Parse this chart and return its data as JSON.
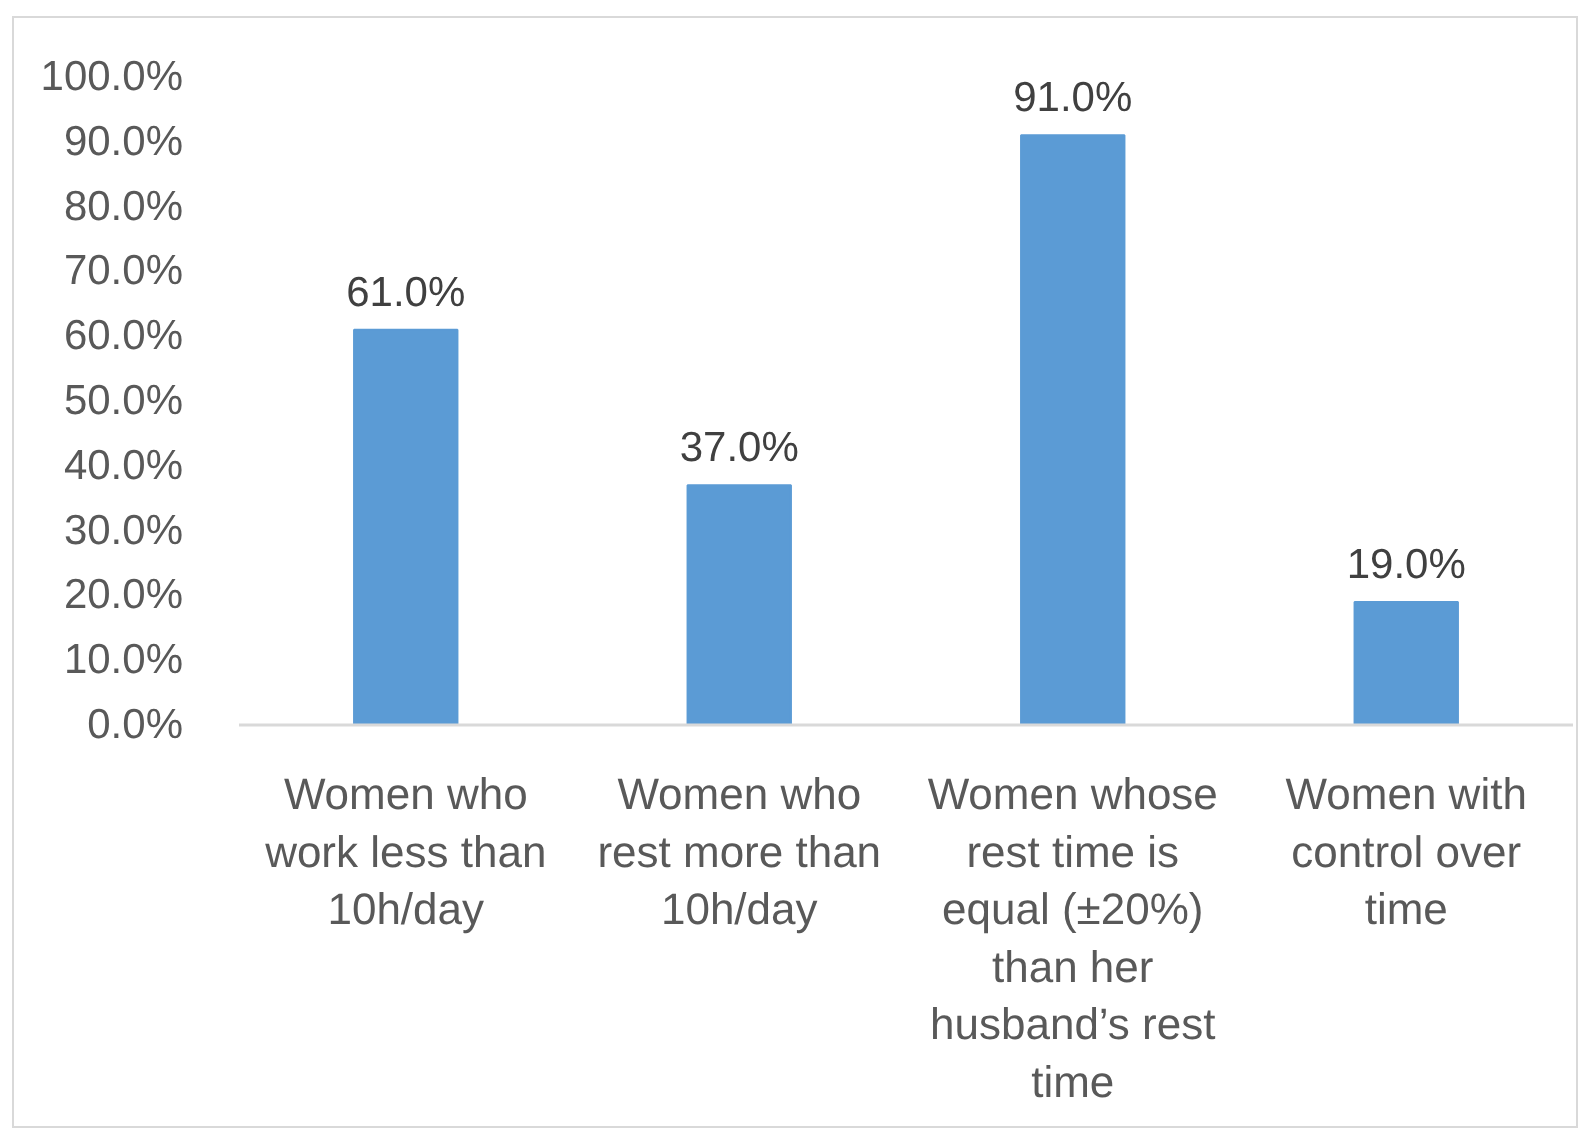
{
  "chart_data": {
    "type": "bar",
    "categories": [
      "Women who work less than 10h/day",
      "Women who rest more than 10h/day",
      "Women whose rest time is equal (±20%) than her husband’s rest time",
      "Women with control over time"
    ],
    "values": [
      61,
      37,
      91,
      19
    ],
    "color": "#5b9bd5",
    "value_labels": [
      "61.0%",
      "37.0%",
      "91.0%",
      "19.0%"
    ],
    "ylim": [
      0,
      100
    ],
    "yticks": [
      {
        "value": 0,
        "label": "0.0%"
      },
      {
        "value": 10,
        "label": "10.0%"
      },
      {
        "value": 20,
        "label": "20.0%"
      },
      {
        "value": 30,
        "label": "30.0%"
      },
      {
        "value": 40,
        "label": "40.0%"
      },
      {
        "value": 50,
        "label": "50.0%"
      },
      {
        "value": 60,
        "label": "60.0%"
      },
      {
        "value": 70,
        "label": "70.0%"
      },
      {
        "value": 80,
        "label": "80.0%"
      },
      {
        "value": 90,
        "label": "90.0%"
      },
      {
        "value": 100,
        "label": "100.0%"
      }
    ]
  }
}
